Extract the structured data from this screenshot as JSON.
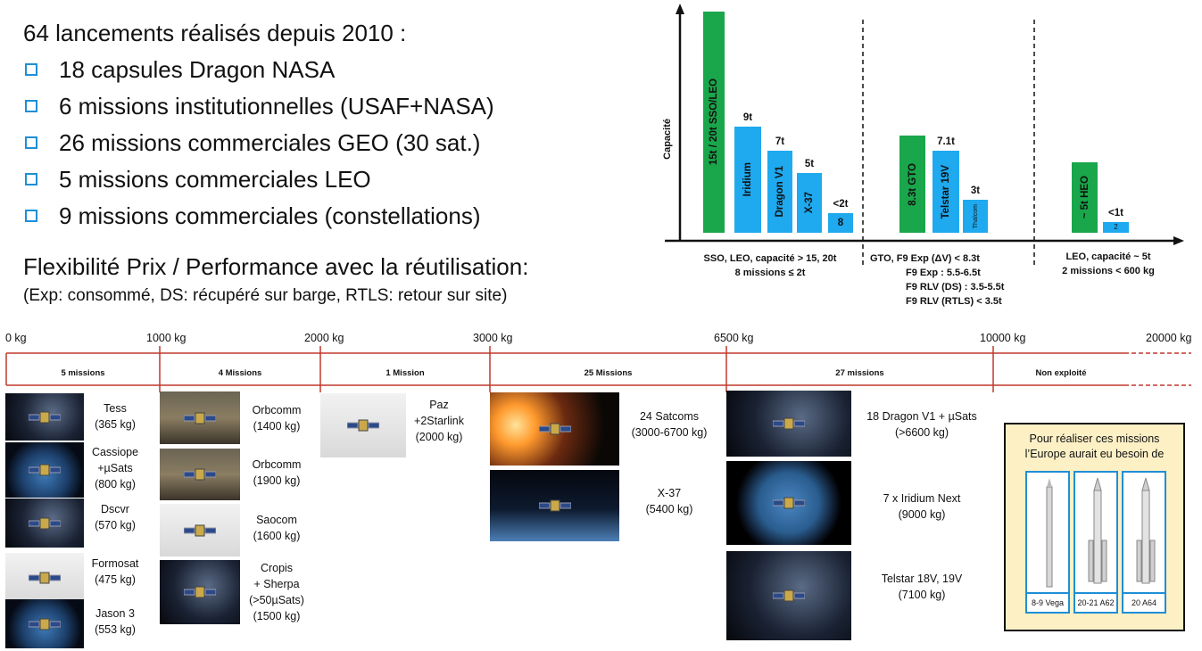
{
  "intro": {
    "headline": "64 lancements réalisés depuis 2010 :",
    "bullets": [
      "18 capsules Dragon NASA",
      "6 missions institutionnelles (USAF+NASA)",
      "26 missions commerciales GEO (30 sat.)",
      "5 missions commerciales LEO",
      "9 missions commerciales (constellations)"
    ],
    "flex_title": "Flexibilité Prix / Performance avec la réutilisation:",
    "flex_note": "(Exp: consommé, DS: récupéré sur barge, RTLS: retour sur site)"
  },
  "chart": {
    "y_axis_label": "Capacité",
    "bar_colors": {
      "green": "#1aa64b",
      "blue": "#1fa9ee"
    },
    "groups": [
      {
        "caption_lines": [
          "SSO, LEO, capacité > 15, 20t",
          "8 missions ≤ 2t"
        ],
        "bars": [
          {
            "inside": "15t / 20t SSO/LEO",
            "top": "",
            "color": "green",
            "value": 100
          },
          {
            "inside": "Iridium",
            "top": "9t",
            "color": "blue",
            "value": 48
          },
          {
            "inside": "Dragon V1",
            "top": "7t",
            "color": "blue",
            "value": 37
          },
          {
            "inside": "X-37",
            "top": "5t",
            "color": "blue",
            "value": 27
          },
          {
            "inside": "8",
            "top": "<2t",
            "color": "blue",
            "value": 9
          }
        ]
      },
      {
        "caption_lines": [
          "GTO,  F9 Exp (ΔV) < 8.3t",
          "F9 Exp : 5.5-6.5t",
          "F9 RLV (DS) : 3.5-5.5t",
          "F9 RLV (RTLS) < 3.5t"
        ],
        "bars": [
          {
            "inside": "8.3t GTO",
            "top": "",
            "color": "green",
            "value": 44
          },
          {
            "inside": "Telstar 19V",
            "top": "7.1t",
            "color": "blue",
            "value": 37
          },
          {
            "inside": "Thaïcom",
            "top": "3t",
            "color": "blue",
            "value": 15
          }
        ]
      },
      {
        "caption_lines": [
          "LEO, capacité ~ 5t",
          "2 missions < 600 kg"
        ],
        "bars": [
          {
            "inside": "~ 5t HEO",
            "top": "",
            "color": "green",
            "value": 32
          },
          {
            "inside": "2",
            "top": "<1t",
            "color": "blue",
            "value": 5
          }
        ]
      }
    ]
  },
  "scale": {
    "ticks": [
      "0 kg",
      "1000 kg",
      "2000 kg",
      "3000 kg",
      "6500 kg",
      "10000 kg",
      "20000 kg"
    ],
    "segments": [
      "5 missions",
      "4 Missions",
      "1 Mission",
      "25 Missions",
      "27 missions",
      "Non exploité"
    ],
    "line_color": "#c0392b"
  },
  "columns": {
    "col1": [
      {
        "lines": "Tess\n(365 kg)",
        "icon": "satellite-icon"
      },
      {
        "lines": "Cassiope\n+µSats\n(800 kg)",
        "icon": "satellite-icon"
      },
      {
        "lines": "Dscvr\n(570 kg)",
        "icon": "satellite-icon"
      },
      {
        "lines": "Formosat\n(475 kg)",
        "icon": "satellite-icon"
      },
      {
        "lines": "Jason 3\n(553 kg)",
        "icon": "satellite-icon"
      }
    ],
    "col2": [
      {
        "lines": "Orbcomm\n(1400 kg)"
      },
      {
        "lines": "Orbcomm\n(1900 kg)"
      },
      {
        "lines": "Saocom\n(1600 kg)"
      },
      {
        "lines": "Cropis\n+ Sherpa\n(>50µSats)\n(1500 kg)"
      }
    ],
    "col3": [
      {
        "lines": "Paz\n+2Starlink\n(2000 kg)"
      }
    ],
    "col4": [
      {
        "lines": "24 Satcoms\n(3000-6700 kg)"
      },
      {
        "lines": "X-37\n(5400 kg)"
      }
    ],
    "col5": [
      {
        "lines": "18 Dragon V1 + µSats\n(>6600 kg)"
      },
      {
        "lines": "7 x Iridium Next\n(9000 kg)"
      },
      {
        "lines": "Telstar 18V, 19V\n(7100 kg)"
      }
    ]
  },
  "europe": {
    "title": "Pour réaliser ces missions\nl’Europe aurait eu besoin de",
    "rockets": [
      "8-9 Vega",
      "20-21 A62",
      "20 A64"
    ]
  }
}
